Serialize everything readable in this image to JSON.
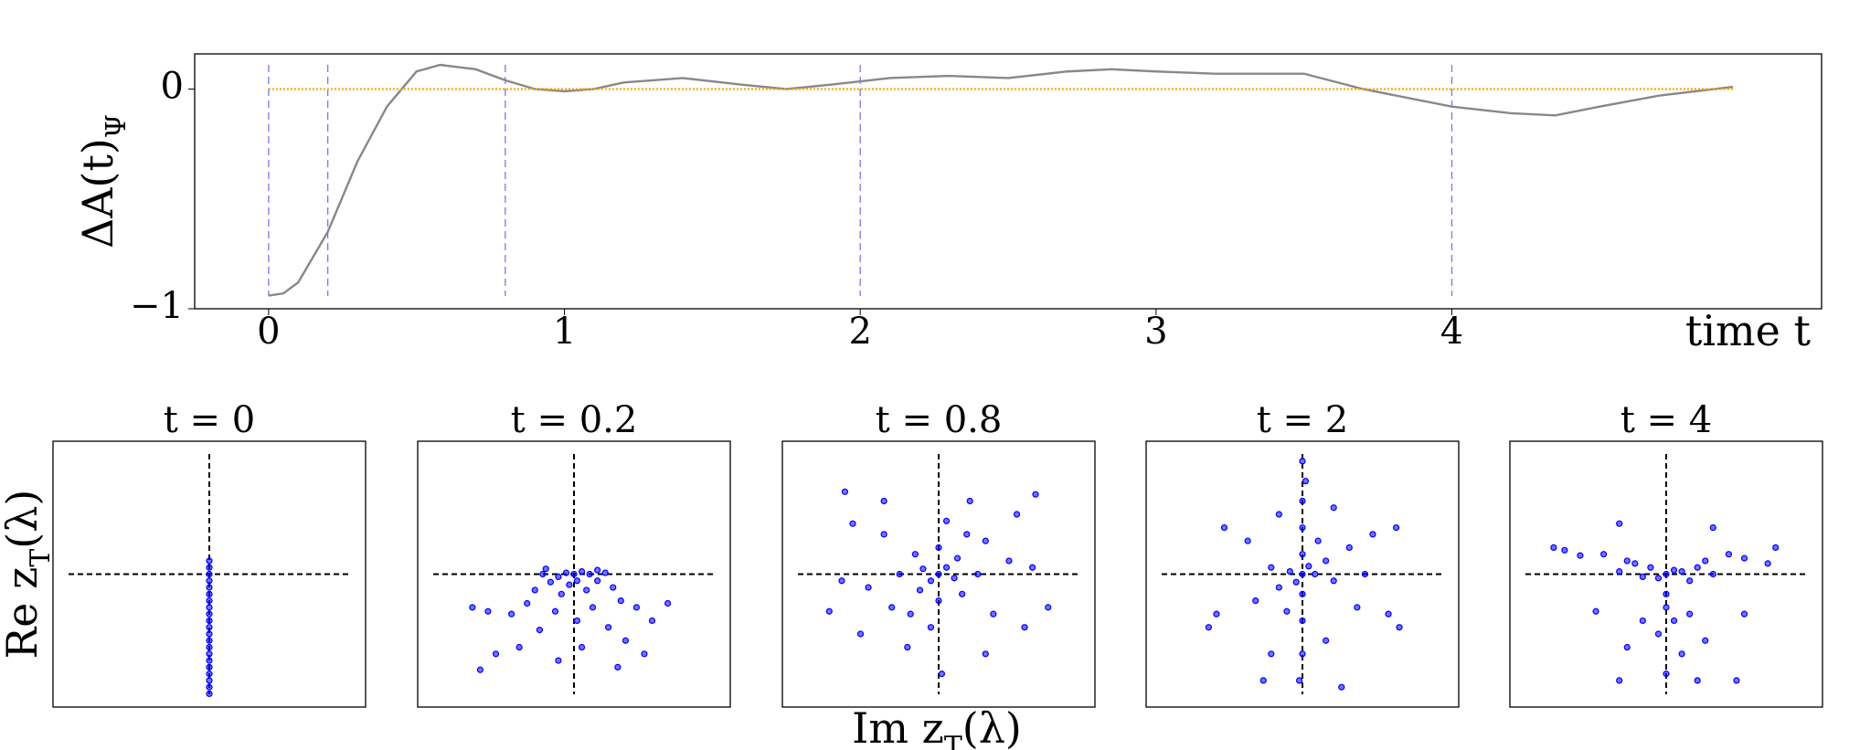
{
  "chart_data": [
    {
      "type": "line",
      "xlim": [
        -0.25,
        5.25
      ],
      "ylim": [
        -1,
        0.16
      ],
      "xticks": [
        0,
        1,
        2,
        3,
        4
      ],
      "yticks": [
        {
          "value": -1,
          "label": "−1"
        },
        0
      ],
      "x_label": "time t",
      "y_label": [
        "ΔA(t)",
        "Ψ"
      ],
      "vlines": [
        0,
        0.2,
        0.8,
        2,
        4
      ],
      "vline_color": "#7777ee",
      "series": [
        {
          "color": "#888888",
          "style": "solid",
          "x": [
            0,
            0.05,
            0.1,
            0.2,
            0.3,
            0.4,
            0.5,
            0.58,
            0.7,
            0.8,
            0.9,
            1.0,
            1.1,
            1.2,
            1.4,
            1.6,
            1.75,
            1.9,
            2.1,
            2.3,
            2.5,
            2.7,
            2.85,
            3.0,
            3.2,
            3.5,
            3.7,
            4.0,
            4.2,
            4.35,
            4.5,
            4.7,
            4.95
          ],
          "values": [
            -0.94,
            -0.93,
            -0.88,
            -0.65,
            -0.33,
            -0.08,
            0.08,
            0.11,
            0.09,
            0.04,
            0.0,
            -0.01,
            0.0,
            0.03,
            0.05,
            0.02,
            0.0,
            0.02,
            0.05,
            0.06,
            0.05,
            0.08,
            0.09,
            0.08,
            0.07,
            0.07,
            0.0,
            -0.08,
            -0.11,
            -0.12,
            -0.08,
            -0.03,
            0.01
          ]
        },
        {
          "color": "#ffa500",
          "style": "dotted",
          "x": [
            0,
            4.95
          ],
          "values": [
            0,
            0
          ]
        }
      ]
    },
    {
      "type": "scatter",
      "xlim": [
        -1,
        1
      ],
      "ylim": [
        -1,
        1
      ],
      "color": "#0000ff",
      "x_label": [
        "Im z",
        "T",
        "(λ)"
      ],
      "y_label": [
        "Re z",
        "T",
        "(λ)"
      ],
      "panels": [
        {
          "title": "t = 0",
          "x": [
            0,
            0,
            0,
            0,
            0,
            0,
            0,
            0,
            0,
            0,
            0,
            0,
            0,
            0,
            0,
            0,
            0,
            0,
            0,
            0,
            0
          ],
          "y": [
            0.1,
            0.05,
            0,
            -0.05,
            -0.1,
            -0.15,
            -0.2,
            -0.25,
            -0.3,
            -0.35,
            -0.4,
            -0.45,
            -0.5,
            -0.55,
            -0.6,
            -0.65,
            -0.7,
            -0.75,
            -0.8,
            -0.85,
            -0.9
          ]
        },
        {
          "title": "t = 0.2",
          "x": [
            0,
            0.05,
            -0.05,
            0.1,
            -0.1,
            0.02,
            -0.03,
            0.15,
            -0.15,
            0.2,
            -0.2,
            0.08,
            -0.08,
            0.25,
            -0.25,
            0.3,
            -0.3,
            0.12,
            -0.12,
            0.4,
            -0.4,
            0.02,
            0.22,
            -0.22,
            0.5,
            -0.55,
            0.33,
            -0.35,
            0.05,
            -0.5,
            0.28,
            -0.6,
            0.45,
            -0.1,
            0.6,
            -0.65,
            0.15,
            -0.18
          ],
          "y": [
            0,
            0.02,
            0.01,
            0,
            -0.02,
            -0.05,
            -0.08,
            -0.05,
            -0.06,
            0.01,
            0,
            -0.12,
            -0.15,
            -0.1,
            -0.12,
            -0.2,
            -0.22,
            -0.25,
            -0.28,
            -0.25,
            -0.3,
            -0.35,
            -0.4,
            -0.42,
            -0.35,
            -0.28,
            -0.5,
            -0.55,
            -0.55,
            -0.6,
            -0.7,
            -0.72,
            -0.6,
            -0.65,
            -0.22,
            -0.25,
            0.03,
            0.04
          ]
        },
        {
          "title": "t = 0.8",
          "x": [
            0,
            0.05,
            -0.05,
            0.1,
            -0.1,
            0.12,
            -0.12,
            0.15,
            -0.15,
            0,
            0,
            0.25,
            -0.25,
            0.3,
            -0.3,
            0.35,
            -0.35,
            0.05,
            -0.05,
            0.45,
            -0.45,
            0.5,
            -0.5,
            0.55,
            -0.55,
            0.2,
            -0.2,
            0.6,
            -0.62,
            0.62,
            -0.6,
            0.7,
            -0.7,
            0.02,
            0.3,
            -0.35,
            0.18,
            -0.18
          ],
          "y": [
            0,
            0.05,
            -0.05,
            -0.03,
            0.04,
            0.12,
            -0.12,
            -0.15,
            0.15,
            0.2,
            -0.2,
            0,
            0,
            0.25,
            -0.25,
            -0.3,
            0.3,
            0.4,
            -0.4,
            0.1,
            -0.1,
            0.45,
            -0.45,
            -0.4,
            0.38,
            0.55,
            -0.55,
            0.05,
            -0.05,
            0.6,
            0.62,
            -0.25,
            -0.28,
            -0.75,
            -0.6,
            0.55,
            0.3,
            -0.3
          ]
        },
        {
          "title": "t = 2",
          "x": [
            0,
            0.04,
            -0.04,
            0.08,
            -0.08,
            0,
            0,
            0.15,
            -0.15,
            0.2,
            -0.2,
            0,
            0,
            0,
            0,
            0,
            0.02,
            -0.02,
            0.3,
            -0.3,
            0.35,
            -0.35,
            0.45,
            -0.5,
            0.55,
            -0.55,
            0.15,
            -0.2,
            0.2,
            -0.15,
            0.6,
            -0.6,
            0.62,
            0.25,
            -0.25,
            0.1,
            -0.1,
            0.4
          ],
          "y": [
            0,
            0.06,
            -0.06,
            0,
            0.02,
            0.15,
            -0.15,
            0.1,
            -0.1,
            -0.05,
            0.05,
            0.35,
            -0.35,
            0.55,
            -0.6,
            0.85,
            0.7,
            -0.8,
            0.2,
            -0.2,
            -0.25,
            0.25,
            0.3,
            0.35,
            -0.3,
            -0.3,
            -0.5,
            -0.6,
            0.5,
            0.45,
            0.35,
            -0.4,
            -0.4,
            -0.85,
            -0.8,
            0.25,
            -0.28,
            0
          ]
        },
        {
          "title": "t = 4",
          "x": [
            0,
            0.05,
            -0.05,
            0.1,
            -0.1,
            0.15,
            -0.15,
            0.2,
            -0.2,
            0.25,
            -0.25,
            0.3,
            -0.3,
            0.4,
            -0.4,
            0.5,
            -0.55,
            0.65,
            -0.65,
            0.7,
            -0.72,
            0.3,
            -0.3,
            0,
            0,
            0.05,
            -0.05,
            0.15,
            -0.15,
            0.25,
            -0.25,
            0,
            0.2,
            -0.3,
            0.45,
            0.5,
            -0.45,
            0.1
          ],
          "y": [
            0,
            0.03,
            -0.03,
            0.02,
            0.05,
            -0.05,
            -0.02,
            0.05,
            0.08,
            0.1,
            0.1,
            0,
            0.02,
            0.15,
            0.15,
            0.12,
            0.14,
            0.08,
            0.18,
            0.2,
            0.2,
            0.35,
            0.38,
            -0.15,
            -0.25,
            -0.35,
            -0.45,
            -0.3,
            -0.35,
            -0.5,
            -0.55,
            -0.75,
            -0.8,
            -0.8,
            -0.8,
            -0.3,
            -0.28,
            -0.6
          ]
        }
      ]
    }
  ]
}
